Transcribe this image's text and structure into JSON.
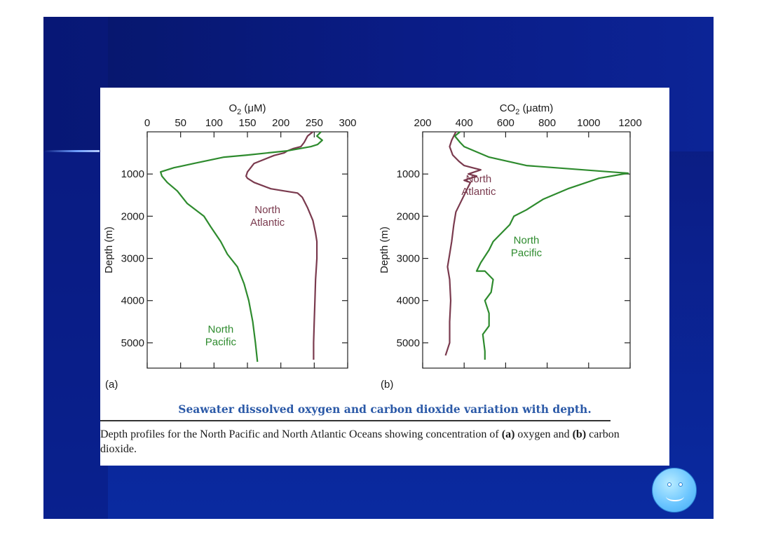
{
  "slide": {
    "caption_title": "Seawater dissolved oxygen and carbon dioxide variation with depth.",
    "caption_parts": [
      {
        "text": "Depth profiles for the North Pacific and North Atlantic Oceans showing concentration of ",
        "bold": false
      },
      {
        "text": "(a)",
        "bold": true
      },
      {
        "text": " oxygen and ",
        "bold": false
      },
      {
        "text": "(b)",
        "bold": true
      },
      {
        "text": " carbon dioxide.",
        "bold": false
      }
    ],
    "colors": {
      "background": "#0b1f8a",
      "north_atlantic": "#7a3a4e",
      "north_pacific": "#2e8b2e",
      "caption_title": "#2c5aa8"
    },
    "icons": [
      "smiley-icon"
    ]
  },
  "chart_data": [
    {
      "type": "line",
      "panel_label": "(a)",
      "xlabel": "O2 (μM)",
      "ylabel": "Depth (m)",
      "xlim": [
        0,
        300
      ],
      "ylim": [
        0,
        5600
      ],
      "x_axis_position": "top",
      "y_inverted": true,
      "xticks": [
        0,
        50,
        100,
        150,
        200,
        250,
        300
      ],
      "yticks": [
        1000,
        2000,
        3000,
        4000,
        5000
      ],
      "grid": false,
      "series": [
        {
          "name": "North Atlantic",
          "color": "#7a3a4e",
          "label_lines": [
            "North",
            "Atlantic"
          ],
          "label_anchor": {
            "x": 180,
            "y": 1930
          },
          "points": [
            [
              248,
              0
            ],
            [
              240,
              100
            ],
            [
              235,
              250
            ],
            [
              230,
              350
            ],
            [
              218,
              400
            ],
            [
              210,
              450
            ],
            [
              205,
              500
            ],
            [
              190,
              560
            ],
            [
              160,
              750
            ],
            [
              150,
              950
            ],
            [
              148,
              1050
            ],
            [
              150,
              1100
            ],
            [
              160,
              1200
            ],
            [
              185,
              1350
            ],
            [
              205,
              1400
            ],
            [
              225,
              1450
            ],
            [
              232,
              1550
            ],
            [
              240,
              1800
            ],
            [
              248,
              2100
            ],
            [
              252,
              2400
            ],
            [
              254,
              2600
            ],
            [
              254,
              3000
            ],
            [
              252,
              3500
            ],
            [
              251,
              4000
            ],
            [
              250,
              4500
            ],
            [
              249,
              5000
            ],
            [
              249,
              5400
            ]
          ]
        },
        {
          "name": "North Pacific",
          "color": "#2e8b2e",
          "label_lines": [
            "North",
            "Pacific"
          ],
          "label_anchor": {
            "x": 110,
            "y": 4760
          },
          "points": [
            [
              260,
              0
            ],
            [
              254,
              100
            ],
            [
              262,
              200
            ],
            [
              255,
              300
            ],
            [
              245,
              350
            ],
            [
              210,
              450
            ],
            [
              150,
              550
            ],
            [
              115,
              600
            ],
            [
              70,
              750
            ],
            [
              40,
              850
            ],
            [
              20,
              950
            ],
            [
              22,
              1050
            ],
            [
              30,
              1200
            ],
            [
              45,
              1400
            ],
            [
              60,
              1700
            ],
            [
              85,
              2000
            ],
            [
              95,
              2250
            ],
            [
              110,
              2600
            ],
            [
              120,
              2900
            ],
            [
              135,
              3200
            ],
            [
              145,
              3600
            ],
            [
              152,
              4000
            ],
            [
              158,
              4500
            ],
            [
              162,
              5000
            ],
            [
              165,
              5450
            ]
          ]
        }
      ]
    },
    {
      "type": "line",
      "panel_label": "(b)",
      "xlabel": "CO2 (μatm)",
      "ylabel": "Depth (m)",
      "xlim": [
        200,
        1200
      ],
      "ylim": [
        0,
        5600
      ],
      "x_axis_position": "top",
      "y_inverted": true,
      "xticks": [
        200,
        400,
        600,
        800,
        1000,
        1200
      ],
      "yticks": [
        1000,
        2000,
        3000,
        4000,
        5000
      ],
      "grid": false,
      "series": [
        {
          "name": "North Atlantic",
          "color": "#7a3a4e",
          "label_lines": [
            "North",
            "Atlantic"
          ],
          "label_anchor": {
            "x": 470,
            "y": 1200
          },
          "points": [
            [
              360,
              0
            ],
            [
              340,
              200
            ],
            [
              330,
              350
            ],
            [
              345,
              550
            ],
            [
              375,
              700
            ],
            [
              400,
              800
            ],
            [
              440,
              850
            ],
            [
              480,
              900
            ],
            [
              450,
              950
            ],
            [
              420,
              1000
            ],
            [
              460,
              1050
            ],
            [
              400,
              1150
            ],
            [
              430,
              1200
            ],
            [
              420,
              1300
            ],
            [
              400,
              1500
            ],
            [
              380,
              1700
            ],
            [
              360,
              1900
            ],
            [
              350,
              2200
            ],
            [
              340,
              2600
            ],
            [
              330,
              2900
            ],
            [
              320,
              3200
            ],
            [
              330,
              3500
            ],
            [
              335,
              4000
            ],
            [
              330,
              4500
            ],
            [
              330,
              5000
            ],
            [
              310,
              5300
            ]
          ]
        },
        {
          "name": "North Pacific",
          "color": "#2e8b2e",
          "label_lines": [
            "North",
            "Pacific"
          ],
          "label_anchor": {
            "x": 700,
            "y": 2650
          },
          "points": [
            [
              380,
              0
            ],
            [
              355,
              100
            ],
            [
              380,
              250
            ],
            [
              400,
              350
            ],
            [
              520,
              600
            ],
            [
              700,
              800
            ],
            [
              1190,
              980
            ],
            [
              1050,
              1100
            ],
            [
              900,
              1350
            ],
            [
              780,
              1600
            ],
            [
              700,
              1850
            ],
            [
              640,
              2000
            ],
            [
              620,
              2200
            ],
            [
              580,
              2400
            ],
            [
              540,
              2600
            ],
            [
              520,
              2800
            ],
            [
              480,
              3100
            ],
            [
              460,
              3300
            ],
            [
              500,
              3300
            ],
            [
              540,
              3500
            ],
            [
              530,
              3800
            ],
            [
              500,
              4000
            ],
            [
              520,
              4300
            ],
            [
              520,
              4600
            ],
            [
              490,
              4800
            ],
            [
              500,
              5200
            ],
            [
              500,
              5400
            ]
          ]
        }
      ]
    }
  ]
}
